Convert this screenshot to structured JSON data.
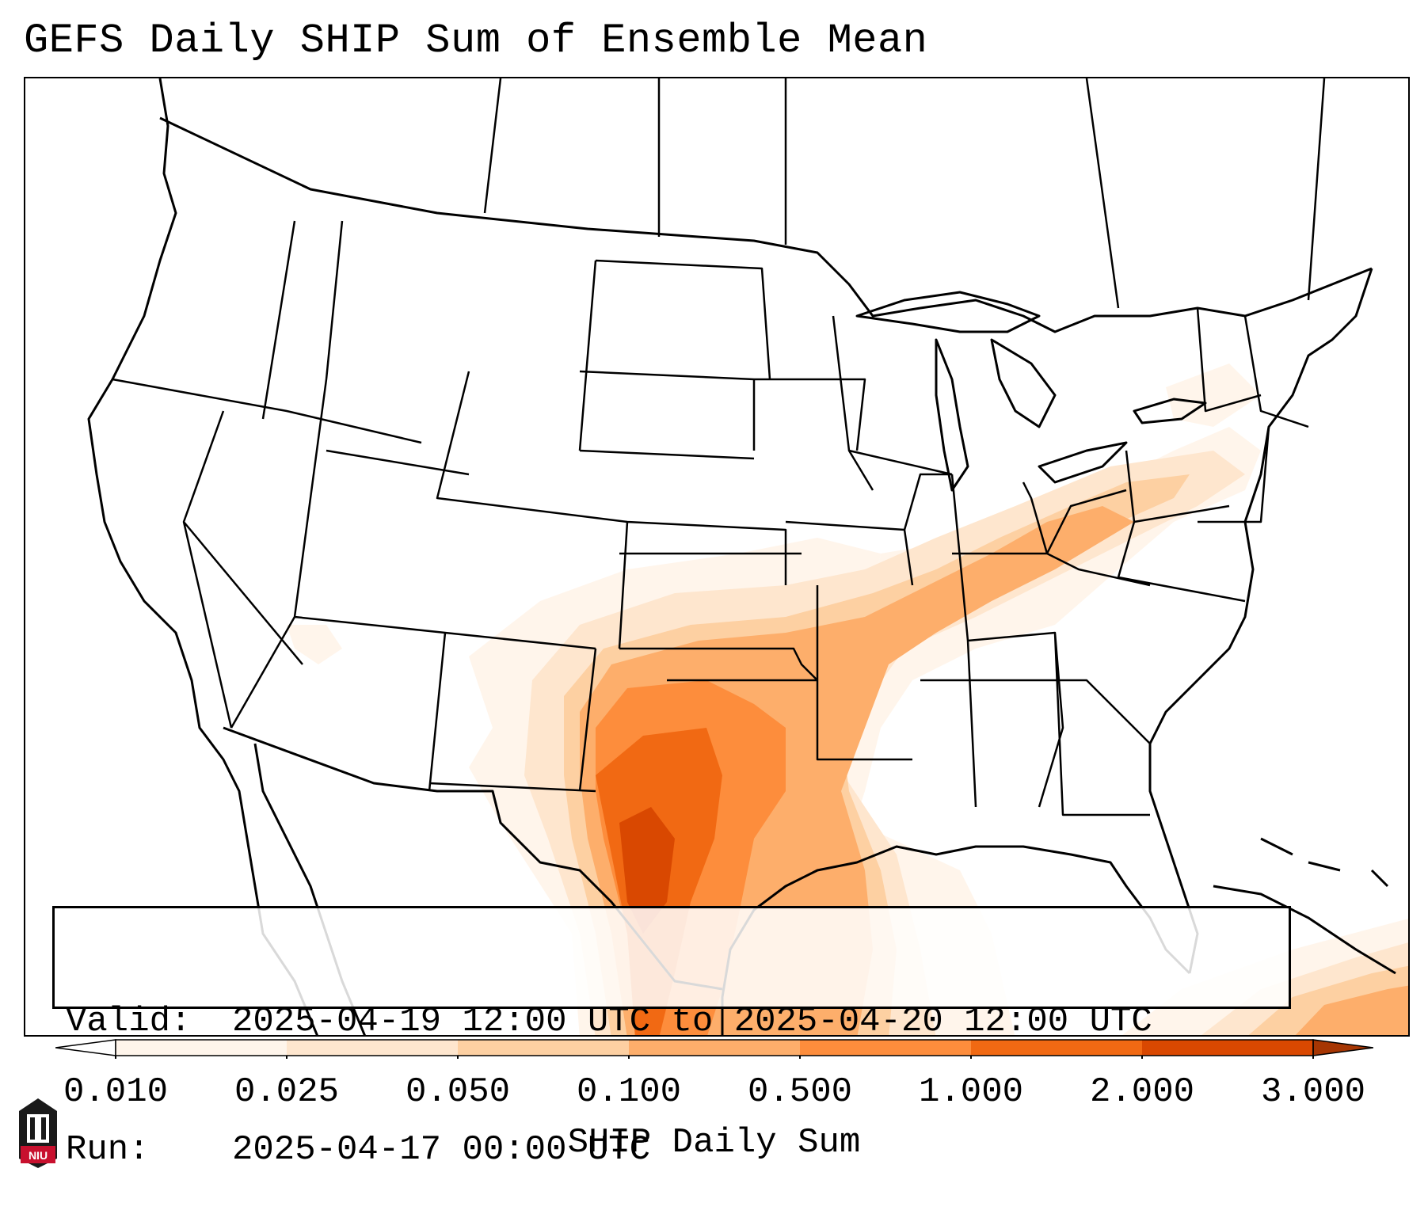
{
  "title": "GEFS Daily SHIP Sum of Ensemble Mean",
  "info": {
    "valid_label": "Valid:",
    "valid_value": "2025-04-19 12:00 UTC to 2025-04-20 12:00 UTC",
    "run_label": "Run:",
    "run_value": "2025-04-17 00:00 UTC"
  },
  "colorbar": {
    "label": "SHIP Daily Sum",
    "ticks": [
      "0.010",
      "0.025",
      "0.050",
      "0.100",
      "0.500",
      "1.000",
      "2.000",
      "3.000"
    ],
    "colors": [
      "#fff5eb",
      "#fee6ce",
      "#fdd0a2",
      "#fdae6b",
      "#fd8d3c",
      "#f16913",
      "#d94801",
      "#a63603"
    ]
  },
  "logo": {
    "text": "NIU"
  }
}
